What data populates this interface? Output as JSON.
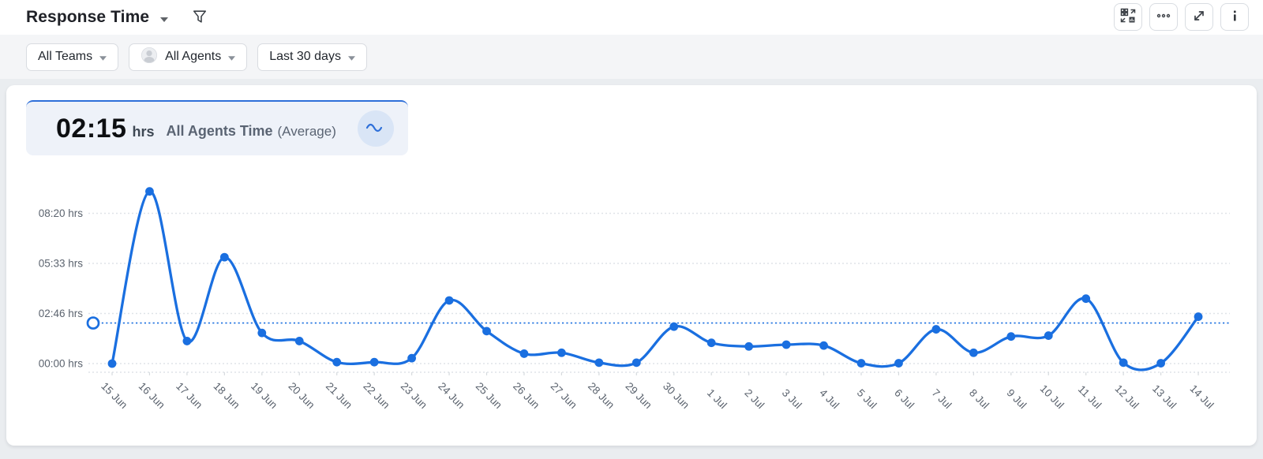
{
  "header": {
    "title": "Response Time",
    "actions": [
      {
        "icon": "visualization-switch-icon"
      },
      {
        "icon": "ellipsis-icon"
      },
      {
        "icon": "expand-icon"
      },
      {
        "icon": "info-icon"
      }
    ]
  },
  "filters": {
    "team": "All Teams",
    "agent": "All Agents",
    "range": "Last 30 days"
  },
  "kpi": {
    "value": "02:15",
    "unit": "hrs",
    "label": "All Agents Time",
    "qualifier": "(Average)"
  },
  "chart_data": {
    "type": "line",
    "title": "Response Time - All Agents Time (Average)",
    "x": [
      "15 Jun",
      "16 Jun",
      "17 Jun",
      "18 Jun",
      "19 Jun",
      "20 Jun",
      "21 Jun",
      "22 Jun",
      "23 Jun",
      "24 Jun",
      "25 Jun",
      "26 Jun",
      "27 Jun",
      "28 Jun",
      "29 Jun",
      "30 Jun",
      "1 Jul",
      "2 Jul",
      "3 Jul",
      "4 Jul",
      "5 Jul",
      "6 Jul",
      "7 Jul",
      "8 Jul",
      "9 Jul",
      "10 Jul",
      "11 Jul",
      "12 Jul",
      "13 Jul",
      "14 Jul"
    ],
    "series": [
      {
        "name": "All Agents Time",
        "values_hours": [
          0.0,
          9.55,
          1.25,
          5.9,
          1.7,
          1.25,
          0.08,
          0.08,
          0.3,
          3.5,
          1.8,
          0.55,
          0.6,
          0.05,
          0.05,
          2.05,
          1.15,
          0.95,
          1.05,
          1.0,
          0.02,
          0.02,
          1.9,
          0.6,
          1.5,
          1.55,
          3.6,
          0.05,
          0.02,
          2.6
        ],
        "values_display": [
          "00:00",
          "09:33",
          "01:15",
          "05:54",
          "01:42",
          "01:15",
          "00:05",
          "00:05",
          "00:18",
          "03:30",
          "01:48",
          "00:33",
          "00:36",
          "00:03",
          "00:03",
          "02:03",
          "01:09",
          "00:57",
          "01:03",
          "01:00",
          "00:01",
          "00:01",
          "01:54",
          "00:36",
          "01:30",
          "01:33",
          "03:36",
          "00:03",
          "00:01",
          "02:36"
        ]
      }
    ],
    "average": {
      "value_hours": 2.25,
      "label": "02:15 hrs"
    },
    "yticks": [
      {
        "label": "00:00 hrs",
        "hours": 0
      },
      {
        "label": "02:46 hrs",
        "hours": 2.7778
      },
      {
        "label": "05:33 hrs",
        "hours": 5.5556
      },
      {
        "label": "08:20 hrs",
        "hours": 8.3333
      }
    ],
    "ylim": [
      0,
      10
    ],
    "xlabel": "",
    "ylabel": "",
    "grid": "dotted-horizontal",
    "legend": "none",
    "colors": {
      "line": "#1a6fe0",
      "grid": "#dfe3e8",
      "average": "#1a6fe0",
      "axis": "#dfe3e8"
    }
  }
}
